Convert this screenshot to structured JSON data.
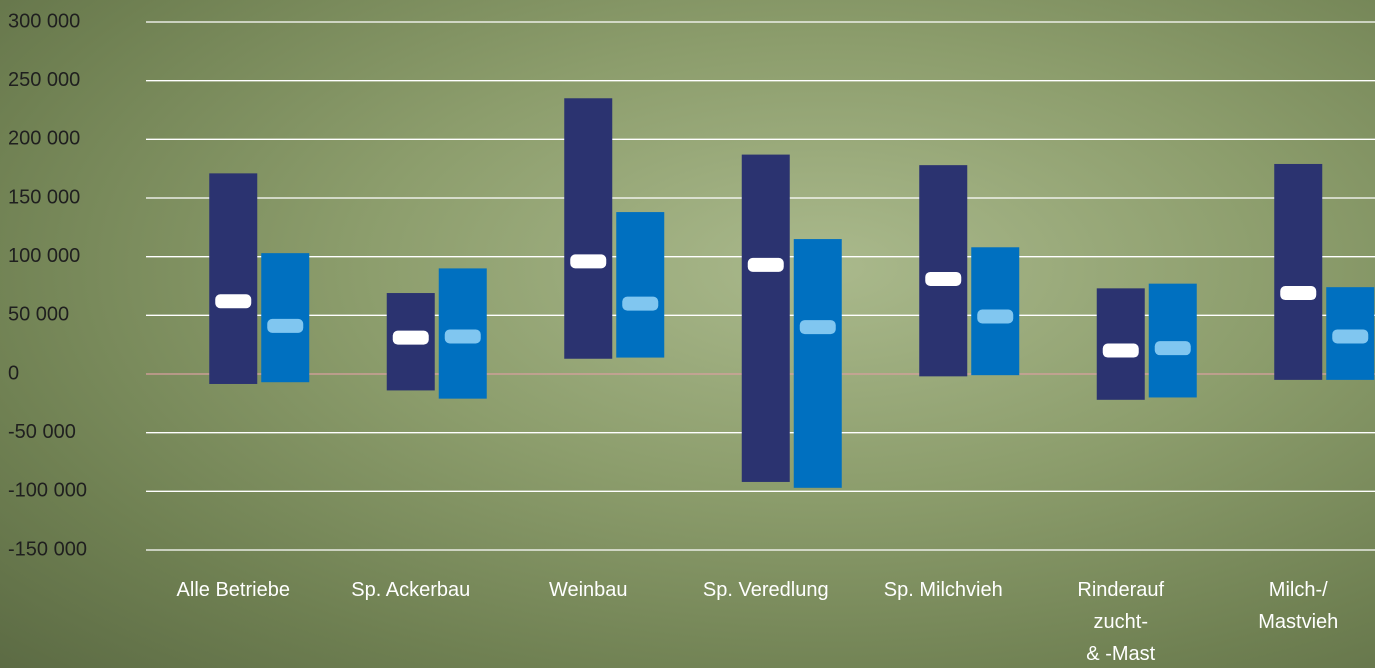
{
  "chart_data": {
    "type": "range",
    "categories": [
      "Alle Betriebe",
      "Sp. Ackerbau",
      "Weinbau",
      "Sp. Veredlung",
      "Sp. Milchvieh",
      "Rinderauf\nzucht-\n& -Mast",
      "Milch-/\nMastvieh"
    ],
    "series": [
      {
        "color": "#2b3370",
        "marker_color": "#ffffff",
        "low": [
          -8500,
          -14000,
          13000,
          -92000,
          -2000,
          -22000,
          -5000
        ],
        "high": [
          171000,
          69000,
          235000,
          187000,
          178000,
          73000,
          179000
        ],
        "mid": [
          62000,
          31000,
          96000,
          93000,
          81000,
          20000,
          69000
        ]
      },
      {
        "color": "#0070c0",
        "marker_color": "#80c6f0",
        "low": [
          -7000,
          -21000,
          14000,
          -97000,
          -1000,
          -20000,
          -5000
        ],
        "high": [
          103000,
          90000,
          138000,
          115000,
          108000,
          77000,
          74000
        ],
        "mid": [
          41000,
          32000,
          60000,
          40000,
          49000,
          22000,
          32000
        ]
      }
    ],
    "ylim": [
      -150000,
      300000
    ],
    "yticks": [
      {
        "value": -150000,
        "label": "-150 000"
      },
      {
        "value": -100000,
        "label": "-100 000"
      },
      {
        "value": -50000,
        "label": "-50 000"
      },
      0,
      {
        "value": 50000,
        "label": "50 000"
      },
      {
        "value": 100000,
        "label": "100 000"
      },
      {
        "value": 150000,
        "label": "150 000"
      },
      {
        "value": 200000,
        "label": "200 000"
      },
      {
        "value": 250000,
        "label": "250 000"
      },
      {
        "value": 300000,
        "label": "300 000"
      }
    ],
    "grid": true
  }
}
